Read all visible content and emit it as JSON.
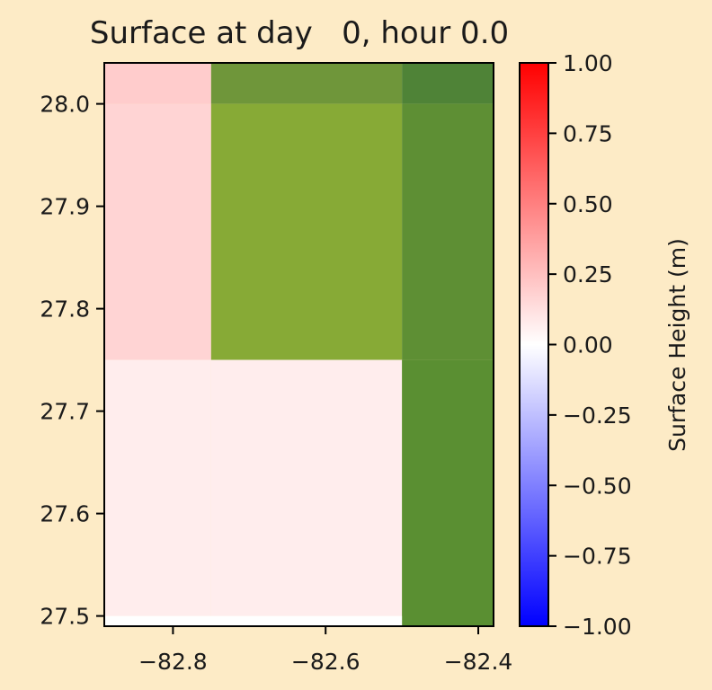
{
  "chart_data": {
    "type": "heatmap",
    "title": "Surface at day   0, hour 0.0",
    "xlabel": "",
    "ylabel": "",
    "xlim": [
      -82.89,
      -82.38
    ],
    "ylim": [
      27.49,
      28.04
    ],
    "x_ticks": [
      -82.8,
      -82.6,
      -82.4
    ],
    "x_tick_labels": [
      "−82.8",
      "−82.6",
      "−82.4"
    ],
    "y_ticks": [
      27.5,
      27.6,
      27.7,
      27.8,
      27.9,
      28.0
    ],
    "y_tick_labels": [
      "27.5",
      "27.6",
      "27.7",
      "27.8",
      "27.9",
      "28.0"
    ],
    "cells": [
      {
        "x0": -82.89,
        "x1": -82.75,
        "y0": 28.0,
        "y1": 28.04,
        "value": 0.2,
        "land": false
      },
      {
        "x0": -82.75,
        "x1": -82.5,
        "y0": 28.0,
        "y1": 28.04,
        "value": null,
        "land": true,
        "color": "#6f963a"
      },
      {
        "x0": -82.5,
        "x1": -82.38,
        "y0": 28.0,
        "y1": 28.04,
        "value": null,
        "land": true,
        "color": "#4f8337"
      },
      {
        "x0": -82.89,
        "x1": -82.75,
        "y0": 27.75,
        "y1": 28.0,
        "value": 0.17,
        "land": false
      },
      {
        "x0": -82.75,
        "x1": -82.5,
        "y0": 27.75,
        "y1": 28.0,
        "value": null,
        "land": true,
        "color": "#87aa36"
      },
      {
        "x0": -82.5,
        "x1": -82.38,
        "y0": 27.75,
        "y1": 28.0,
        "value": null,
        "land": true,
        "color": "#5e8f34"
      },
      {
        "x0": -82.89,
        "x1": -82.75,
        "y0": 27.5,
        "y1": 27.75,
        "value": 0.07,
        "land": false
      },
      {
        "x0": -82.75,
        "x1": -82.5,
        "y0": 27.5,
        "y1": 27.75,
        "value": 0.07,
        "land": false
      },
      {
        "x0": -82.5,
        "x1": -82.38,
        "y0": 27.49,
        "y1": 27.75,
        "value": null,
        "land": true,
        "color": "#5a8f32"
      },
      {
        "x0": -82.89,
        "x1": -82.5,
        "y0": 27.49,
        "y1": 27.5,
        "value": 0.0,
        "land": false
      }
    ],
    "colorbar": {
      "label": "Surface Height (m)",
      "vmin": -1.0,
      "vmax": 1.0,
      "colormap": "bwr",
      "ticks": [
        1.0,
        0.75,
        0.5,
        0.25,
        0.0,
        -0.25,
        -0.5,
        -0.75,
        -1.0
      ],
      "tick_labels": [
        "1.00",
        "0.75",
        "0.50",
        "0.25",
        "0.00",
        "−0.25",
        "−0.50",
        "−0.75",
        "−1.00"
      ]
    },
    "colors": {
      "background": "#fdebc6",
      "colormap_low": "#0000ff",
      "colormap_mid": "#ffffff",
      "colormap_high": "#ff0000"
    }
  }
}
